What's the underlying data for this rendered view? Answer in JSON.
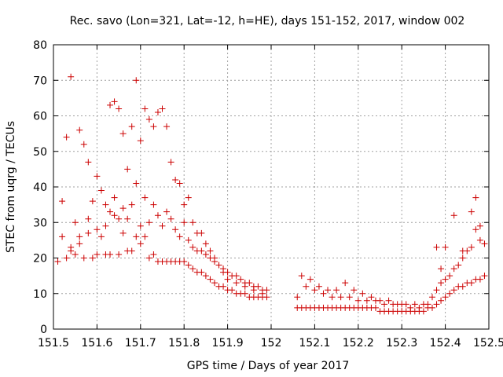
{
  "chart_data": {
    "type": "scatter",
    "title": "Rec. savo (Lon=321, Lat=-12, h=HE), days 151-152, 2017, window 002",
    "xlabel": "GPS time / Days of year 2017",
    "ylabel": "STEC from uqrg / TECUs",
    "xlim": [
      151.5,
      152.5
    ],
    "ylim": [
      0,
      80
    ],
    "xticks": [
      "151.5",
      "151.6",
      "151.7",
      "151.8",
      "151.9",
      "152",
      "152.1",
      "152.2",
      "152.3",
      "152.4",
      "152.5"
    ],
    "yticks": [
      "0",
      "10",
      "20",
      "30",
      "40",
      "50",
      "60",
      "70",
      "80"
    ],
    "grid": true,
    "marker": "plus",
    "color": "#cc0000",
    "series": [
      {
        "x": [
          151.51,
          151.52,
          151.53,
          151.53,
          151.54,
          151.54,
          151.55,
          151.55,
          151.56,
          151.56,
          151.57,
          151.57,
          151.58,
          151.58,
          151.59,
          151.59,
          151.6,
          151.6,
          151.61,
          151.61,
          151.62,
          151.62,
          151.63,
          151.63,
          151.64,
          151.64,
          151.65,
          151.65,
          151.66,
          151.66,
          151.67,
          151.67,
          151.68,
          151.68,
          151.69,
          151.69,
          151.7,
          151.7,
          151.71,
          151.71,
          151.72,
          151.72,
          151.73,
          151.73,
          151.74,
          151.74,
          151.75,
          151.75,
          151.76,
          151.76,
          151.77,
          151.77,
          151.78,
          151.78,
          151.79,
          151.79,
          151.8,
          151.8,
          151.81,
          151.81,
          151.82,
          151.82,
          151.83,
          151.83,
          151.84,
          151.84,
          151.85,
          151.85,
          151.86,
          151.86,
          151.87,
          151.87,
          151.88,
          151.88,
          151.89,
          151.89,
          151.9,
          151.9,
          151.91,
          151.91,
          151.92,
          151.92,
          151.93,
          151.93,
          151.94,
          151.94,
          151.95,
          151.95,
          151.96,
          151.96,
          151.97,
          151.97,
          151.98,
          151.98,
          151.99,
          151.99
        ],
        "y": [
          19,
          36,
          20,
          54,
          22,
          71,
          21,
          30,
          26,
          56,
          20,
          52,
          27,
          47,
          20,
          36,
          21,
          43,
          26,
          39,
          21,
          35,
          21,
          63,
          32,
          64,
          21,
          62,
          34,
          55,
          22,
          45,
          22,
          57,
          26,
          70,
          24,
          53,
          26,
          62,
          20,
          59,
          21,
          57,
          19,
          61,
          19,
          62,
          19,
          57,
          19,
          47,
          19,
          42,
          19,
          41,
          19,
          35,
          18,
          37,
          17,
          30,
          16,
          27,
          16,
          27,
          15,
          24,
          14,
          22,
          13,
          20,
          12,
          18,
          12,
          17,
          11,
          16,
          11,
          15,
          10,
          15,
          10,
          14,
          10,
          13,
          9,
          13,
          9,
          12,
          9,
          12,
          9,
          11,
          9,
          11
        ]
      },
      {
        "x": [
          151.52,
          151.54,
          151.56,
          151.58,
          151.6,
          151.62,
          151.63,
          151.64,
          151.65,
          151.66,
          151.67,
          151.68,
          151.69,
          151.7,
          151.71,
          151.72,
          151.73,
          151.74,
          151.75,
          151.76,
          151.77,
          151.78,
          151.79,
          151.8,
          151.81,
          151.82,
          151.83,
          151.84,
          151.85,
          151.86,
          151.87,
          151.88,
          151.89,
          151.9,
          151.92,
          151.94,
          151.96,
          151.98
        ],
        "y": [
          26,
          23,
          24,
          31,
          28,
          29,
          33,
          37,
          31,
          27,
          31,
          35,
          41,
          29,
          37,
          30,
          35,
          32,
          29,
          33,
          31,
          28,
          26,
          30,
          25,
          23,
          22,
          22,
          21,
          20,
          19,
          18,
          16,
          14,
          13,
          12,
          11,
          10
        ]
      },
      {
        "x": [
          152.06,
          152.07,
          152.08,
          152.09,
          152.1,
          152.11,
          152.12,
          152.13,
          152.14,
          152.15,
          152.16,
          152.17,
          152.18,
          152.19,
          152.2,
          152.21,
          152.22,
          152.23,
          152.24,
          152.25,
          152.26,
          152.27,
          152.28,
          152.29,
          152.3,
          152.31,
          152.32,
          152.33,
          152.34,
          152.35,
          152.36,
          152.37,
          152.38,
          152.39,
          152.4,
          152.41,
          152.42,
          152.43,
          152.44,
          152.45,
          152.46,
          152.47,
          152.48,
          152.49
        ],
        "y": [
          6,
          6,
          6,
          6,
          6,
          6,
          6,
          6,
          6,
          6,
          6,
          6,
          6,
          6,
          6,
          6,
          6,
          6,
          6,
          5,
          5,
          5,
          5,
          5,
          5,
          5,
          5,
          5,
          5,
          5,
          6,
          6,
          7,
          8,
          9,
          10,
          11,
          12,
          12,
          13,
          13,
          14,
          14,
          15
        ]
      },
      {
        "x": [
          152.06,
          152.07,
          152.08,
          152.09,
          152.1,
          152.11,
          152.12,
          152.13,
          152.14,
          152.15,
          152.16,
          152.17,
          152.18,
          152.19,
          152.2,
          152.21,
          152.22,
          152.23,
          152.24,
          152.25,
          152.26,
          152.27,
          152.28,
          152.29,
          152.3,
          152.31,
          152.32,
          152.33,
          152.34,
          152.35,
          152.36,
          152.37,
          152.38,
          152.39,
          152.4,
          152.41,
          152.42,
          152.43,
          152.44,
          152.45,
          152.46,
          152.47,
          152.48,
          152.49
        ],
        "y": [
          9,
          15,
          12,
          14,
          11,
          12,
          10,
          11,
          9,
          11,
          9,
          13,
          9,
          11,
          8,
          10,
          8,
          9,
          8,
          8,
          7,
          8,
          7,
          7,
          7,
          7,
          6,
          7,
          6,
          7,
          7,
          9,
          11,
          13,
          14,
          15,
          17,
          18,
          20,
          22,
          23,
          28,
          25,
          24
        ]
      },
      {
        "x": [
          152.38,
          152.39,
          152.4,
          152.42,
          152.44,
          152.46,
          152.47,
          152.48
        ],
        "y": [
          23,
          17,
          23,
          32,
          22,
          33,
          37,
          29
        ]
      }
    ]
  }
}
